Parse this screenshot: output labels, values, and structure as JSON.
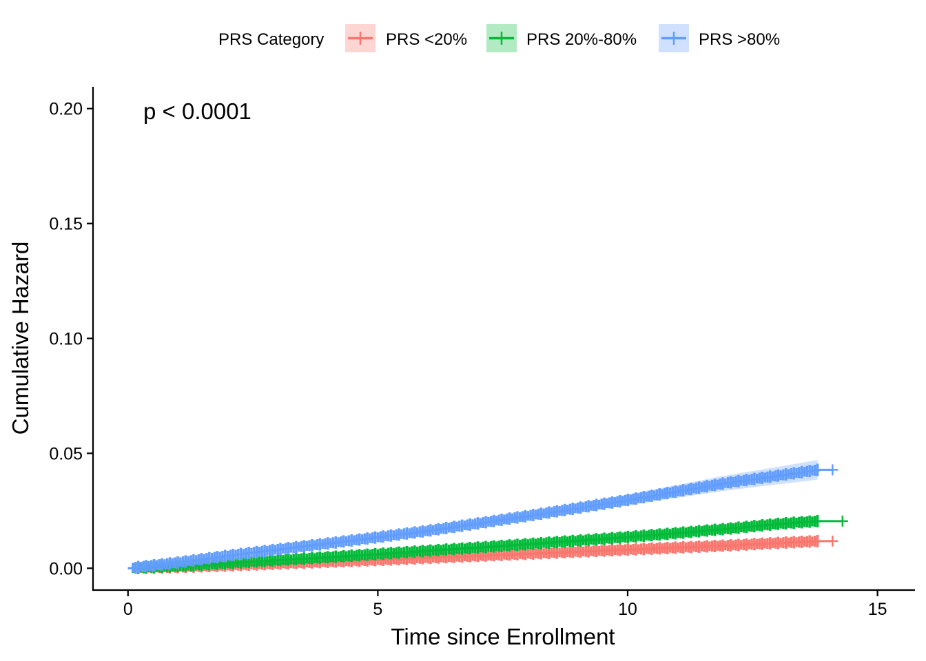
{
  "chart_data": {
    "type": "line",
    "xlabel": "Time since Enrollment",
    "ylabel": "Cumulative Hazard",
    "xlim": [
      -0.7,
      15.75
    ],
    "ylim": [
      -0.0095,
      0.2095
    ],
    "xticks": [
      0,
      5,
      10,
      15
    ],
    "xtick_labels": [
      "0",
      "5",
      "10",
      "15"
    ],
    "yticks": [
      0.0,
      0.05,
      0.1,
      0.15,
      0.2
    ],
    "ytick_labels": [
      "0.00",
      "0.05",
      "0.10",
      "0.15",
      "0.20"
    ],
    "grid": false,
    "legend": {
      "title": "PRS Category",
      "position": "top",
      "entries": [
        "PRS <20%",
        "PRS 20%-80%",
        "PRS >80%"
      ]
    },
    "annotation": "p < 0.0001",
    "series": [
      {
        "name": "PRS <20%",
        "color": "#F8766D",
        "x": [
          0,
          1,
          2,
          3,
          4,
          5,
          6,
          7,
          8,
          9,
          10,
          11,
          12,
          13,
          13.8,
          14.1
        ],
        "y": [
          0.0,
          0.0005,
          0.0012,
          0.002,
          0.0028,
          0.0036,
          0.0045,
          0.0054,
          0.0063,
          0.0072,
          0.0081,
          0.009,
          0.0099,
          0.011,
          0.0118,
          0.0118
        ]
      },
      {
        "name": "PRS 20%-80%",
        "color": "#00BA38",
        "x": [
          0,
          1,
          2,
          3,
          4,
          5,
          6,
          7,
          8,
          9,
          10,
          11,
          12,
          13,
          13.8,
          14.3
        ],
        "y": [
          0.0,
          0.001,
          0.0022,
          0.0035,
          0.0048,
          0.0062,
          0.0076,
          0.009,
          0.0105,
          0.012,
          0.0136,
          0.0153,
          0.0172,
          0.0193,
          0.0205,
          0.0205
        ]
      },
      {
        "name": "PRS >80%",
        "color": "#619CFF",
        "x": [
          0,
          1,
          2,
          3,
          4,
          5,
          6,
          7,
          8,
          9,
          10,
          11,
          12,
          13,
          13.8,
          14.1
        ],
        "y": [
          0.0,
          0.0025,
          0.0055,
          0.0082,
          0.0108,
          0.0135,
          0.0163,
          0.0195,
          0.0228,
          0.0262,
          0.0297,
          0.0335,
          0.0372,
          0.0403,
          0.0428,
          0.0428
        ]
      }
    ]
  }
}
